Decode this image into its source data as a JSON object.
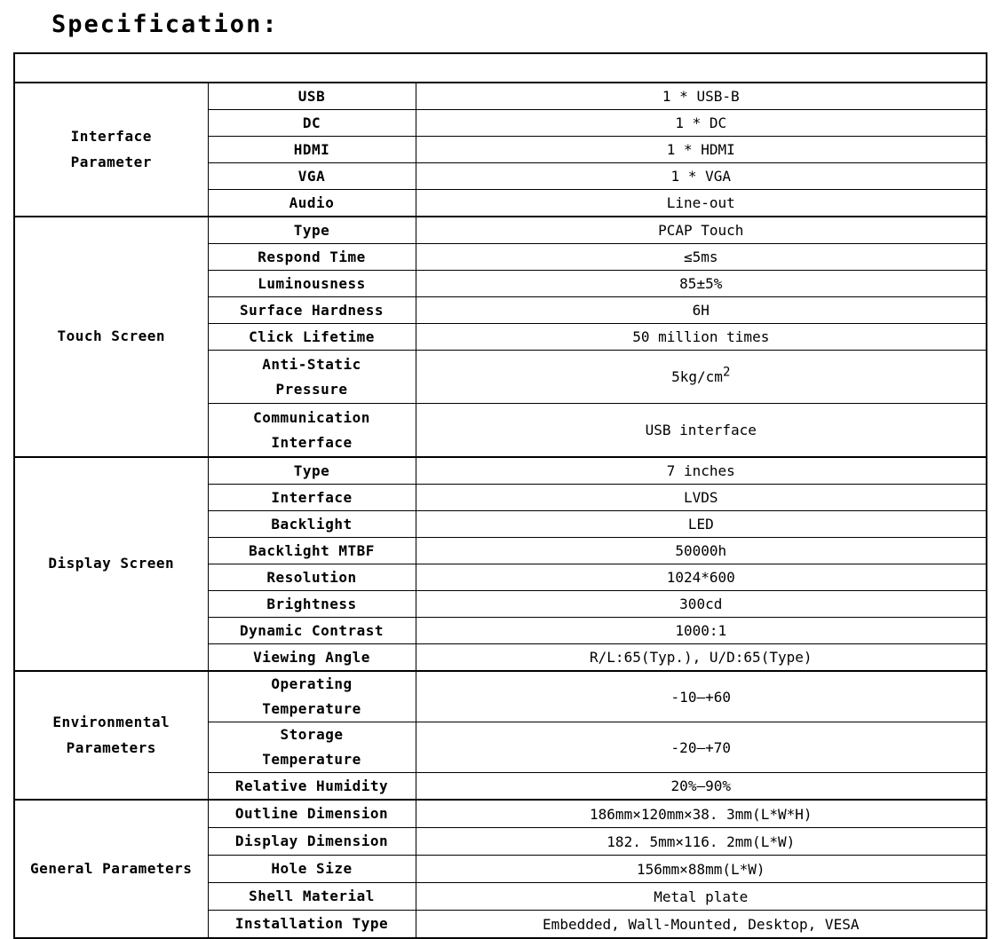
{
  "page_title": "Specification:",
  "spec_table": {
    "sections": [
      {
        "category": "Interface\nParameter",
        "rows": [
          {
            "label": "USB",
            "value": "1 * USB-B"
          },
          {
            "label": "DC",
            "value": "1 * DC"
          },
          {
            "label": "HDMI",
            "value": "1 * HDMI"
          },
          {
            "label": "VGA",
            "value": "1 * VGA"
          },
          {
            "label": "Audio",
            "value": "Line-out"
          }
        ]
      },
      {
        "category": "Touch Screen",
        "rows": [
          {
            "label": "Type",
            "value": "PCAP Touch"
          },
          {
            "label": "Respond Time",
            "value": "≤5ms"
          },
          {
            "label": "Luminousness",
            "value": "85±5%"
          },
          {
            "label": "Surface Hardness",
            "value": "6H"
          },
          {
            "label": "Click Lifetime",
            "value": "50 million times"
          },
          {
            "label": "Anti-Static\nPressure",
            "value": "5kg/cm",
            "value_sup": "2"
          },
          {
            "label": "Communication\nInterface",
            "value": "USB interface"
          }
        ]
      },
      {
        "category": "Display Screen",
        "rows": [
          {
            "label": "Type",
            "value": "7 inches"
          },
          {
            "label": "Interface",
            "value": "LVDS"
          },
          {
            "label": "Backlight",
            "value": "LED"
          },
          {
            "label": "Backlight MTBF",
            "value": "50000h"
          },
          {
            "label": "Resolution",
            "value": "1024*600"
          },
          {
            "label": "Brightness",
            "value": "300cd"
          },
          {
            "label": "Dynamic Contrast",
            "value": "1000:1"
          },
          {
            "label": "Viewing Angle",
            "value": "R/L:65(Typ.), U/D:65(Type)"
          }
        ]
      },
      {
        "category": "Environmental\nParameters",
        "rows": [
          {
            "label": "Operating\nTemperature",
            "value": "-10—+60"
          },
          {
            "label": "Storage\nTemperature",
            "value": "-20—+70"
          },
          {
            "label": "Relative Humidity",
            "value": "20%—90%"
          }
        ]
      },
      {
        "category": "General Parameters",
        "rows": [
          {
            "label": "Outline Dimension",
            "value": "186mm×120mm×38. 3mm(L*W*H)"
          },
          {
            "label": "Display Dimension",
            "value": "182. 5mm×116. 2mm(L*W)"
          },
          {
            "label": "Hole Size",
            "value": "156mm×88mm(L*W)"
          },
          {
            "label": "Shell Material",
            "value": "Metal plate"
          },
          {
            "label": "Installation Type",
            "value": "Embedded, Wall-Mounted, Desktop, VESA"
          }
        ]
      }
    ]
  }
}
